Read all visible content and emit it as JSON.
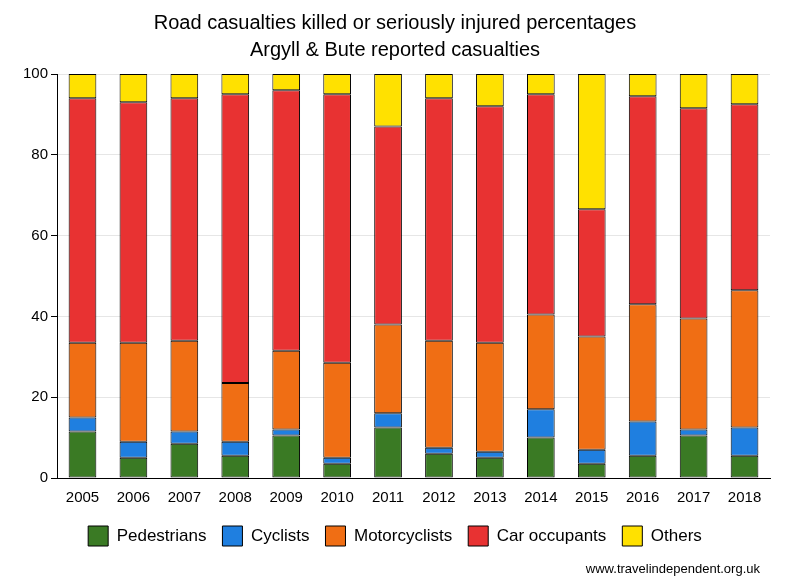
{
  "chart_data": {
    "type": "bar",
    "title": "Road casualties killed or seriously injured percentages",
    "subtitle": "Argyll & Bute reported casualties",
    "annotations": [
      "www.travelindependent.org.uk"
    ],
    "categories": [
      "2005",
      "2006",
      "2007",
      "2008",
      "2009",
      "2010",
      "2011",
      "2012",
      "2013",
      "2014",
      "2015",
      "2016",
      "2017",
      "2018"
    ],
    "series": [
      {
        "name": "Pedestrians",
        "color": "#3a7a24",
        "values": [
          11.5,
          5,
          8.5,
          5.5,
          10.5,
          3.5,
          12.5,
          6,
          5,
          10,
          3.5,
          5.5,
          10.5,
          5.5
        ]
      },
      {
        "name": "Cyclists",
        "color": "#1f7fe0",
        "values": [
          3.5,
          4,
          3,
          3.5,
          1.5,
          1.5,
          3.5,
          1.5,
          1.5,
          7,
          3.5,
          8.5,
          1.5,
          7
        ]
      },
      {
        "name": "Motorcyclists",
        "color": "#f06e14",
        "values": [
          18.5,
          24.5,
          22.5,
          14.5,
          19.5,
          23.5,
          22,
          26.5,
          27,
          23.5,
          28,
          29,
          27.5,
          34
        ]
      },
      {
        "name": "Car occupants",
        "color": "#e83232",
        "values": [
          60.5,
          59.5,
          60,
          71.5,
          64.5,
          66.5,
          49,
          60,
          58.5,
          54.5,
          31.5,
          51.5,
          52,
          46
        ]
      },
      {
        "name": "Others",
        "color": "#ffe100",
        "values": [
          6,
          7,
          6,
          5,
          4,
          5,
          13,
          6,
          8,
          5,
          33.5,
          5.5,
          8.5,
          7.5
        ]
      }
    ],
    "stacked": true,
    "ylim": [
      0,
      100
    ],
    "yticks": [
      0,
      20,
      40,
      60,
      80,
      100
    ],
    "grid": true,
    "legend": "bottom"
  }
}
